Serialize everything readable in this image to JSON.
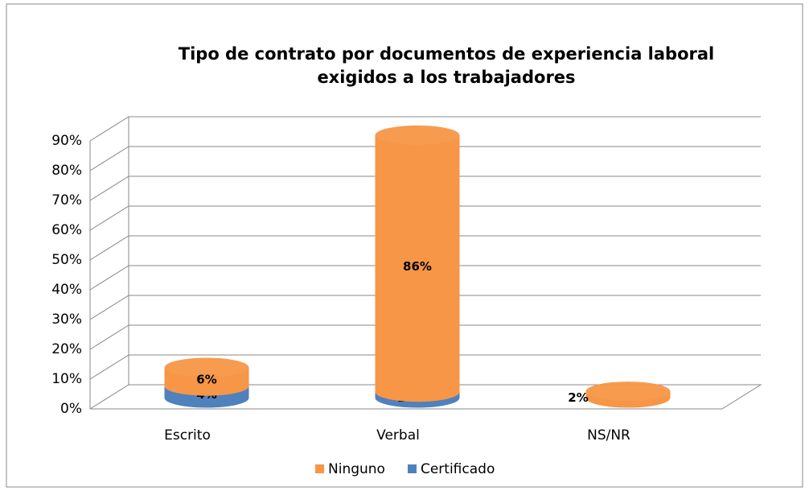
{
  "chart_data": {
    "type": "bar3d",
    "title": [
      "Tipo de contrato por documentos de experiencia laboral",
      "exigidos a los trabajadores"
    ],
    "categories": [
      "Escrito",
      "Verbal",
      "NS/NR"
    ],
    "series": [
      {
        "name": "Ninguno",
        "color": "#f79646",
        "values": [
          6,
          86,
          2
        ],
        "value_labels": [
          "6%",
          "86%",
          "2%"
        ]
      },
      {
        "name": "Certificado",
        "color": "#4f81bd",
        "values": [
          4,
          2,
          null
        ],
        "value_labels": [
          "4%",
          "2%",
          null
        ]
      }
    ],
    "ylim": [
      0,
      90
    ],
    "yticks": [
      {
        "value": 0,
        "label": "0%"
      },
      {
        "value": 10,
        "label": "10%"
      },
      {
        "value": 20,
        "label": "20%"
      },
      {
        "value": 30,
        "label": "30%"
      },
      {
        "value": 40,
        "label": "40%"
      },
      {
        "value": 50,
        "label": "50%"
      },
      {
        "value": 60,
        "label": "60%"
      },
      {
        "value": 70,
        "label": "70%"
      },
      {
        "value": 80,
        "label": "80%"
      },
      {
        "value": 90,
        "label": "90%"
      }
    ],
    "grid": true,
    "legend": "bottom",
    "stacked": true
  }
}
